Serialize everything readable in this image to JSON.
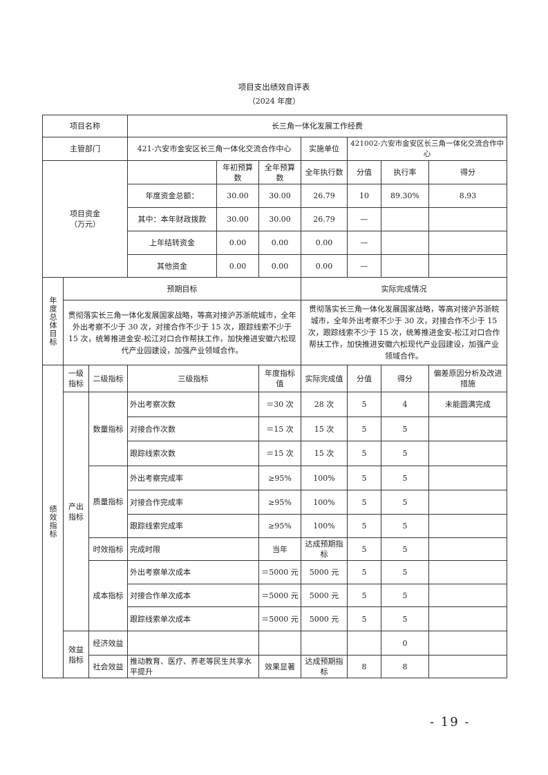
{
  "title": "项目支出绩效自评表",
  "subtitle": "（2024 年度）",
  "project": {
    "name_label": "项目名称",
    "name": "长三角一体化发展工作经费",
    "dept_label": "主管部门",
    "dept": "421-六安市金安区长三角一体化交流合作中心",
    "unit_label": "实施单位",
    "unit": "421002-六安市金安区长三角一体化交流合作中心"
  },
  "funds": {
    "label": "项目资金\n（万元）",
    "headers": [
      "",
      "年初预算数",
      "全年预算数",
      "全年执行数",
      "分值",
      "执行率",
      "得分"
    ],
    "rows": [
      [
        "年度资金总额：",
        "30.00",
        "30.00",
        "26.79",
        "10",
        "89.30%",
        "8.93"
      ],
      [
        "其中：本年财政拨款",
        "30.00",
        "30.00",
        "26.79",
        "—",
        "",
        ""
      ],
      [
        "上年结转资金",
        "0.00",
        "0.00",
        "0.00",
        "—",
        "",
        ""
      ],
      [
        "其他资金",
        "0.00",
        "0.00",
        "0.00",
        "—",
        "",
        ""
      ]
    ]
  },
  "goals": {
    "label": "年度总体目标",
    "expected_label": "预期目标",
    "actual_label": "实际完成情况",
    "expected": "贯彻落实长三角一体化发展国家战略，等高对接沪苏浙皖城市，全年外出考察不少于 30 次，对接合作不少于 15 次，跟踪线索不少于 15 次，统筹推进金安-松江对口合作帮扶工作，加快推进安徽六松现代产业园建设，加强产业领域合作。",
    "actual": "贯彻落实长三角一体化发展国家战略，等高对接沪苏浙皖城市，全年外出考察不少于 30 次，对接合作不少于 15 次，跟踪线索不少于 15 次，统筹推进金安-松江对口合作帮扶工作，加快推进安徽六松现代产业园建设，加强产业领域合作。"
  },
  "perf": {
    "label": "绩效指标",
    "headers": [
      "一级指标",
      "二级指标",
      "三级指标",
      "年度指标值",
      "实际完成值",
      "分值",
      "得分",
      "偏差原因分析及改进措施"
    ],
    "output_label": "产出指标",
    "benefit_label": "效益指标",
    "groups": {
      "quantity": "数量指标",
      "quality": "质量指标",
      "time": "时效指标",
      "cost": "成本指标",
      "economic": "经济效益",
      "social": "社会效益"
    },
    "rows": [
      [
        "外出考察次数",
        "＝30 次",
        "28 次",
        "5",
        "4",
        "未能圆满完成"
      ],
      [
        "对接合作次数",
        "＝15 次",
        "15 次",
        "5",
        "5",
        ""
      ],
      [
        "跟踪线索次数",
        "＝15 次",
        "15 次",
        "5",
        "5",
        ""
      ],
      [
        "外出考察完成率",
        "≥95%",
        "100%",
        "5",
        "5",
        ""
      ],
      [
        "对接合作完成率",
        "≥95%",
        "100%",
        "5",
        "5",
        ""
      ],
      [
        "跟踪线索完成率",
        "≥95%",
        "100%",
        "5",
        "5",
        ""
      ],
      [
        "完成时限",
        "当年",
        "达成预期指标",
        "5",
        "5",
        ""
      ],
      [
        "外出考察单次成本",
        "＝5000 元",
        "5000 元",
        "5",
        "5",
        ""
      ],
      [
        "对接合作单次成本",
        "＝5000 元",
        "5000 元",
        "5",
        "5",
        ""
      ],
      [
        "跟踪线索单次成本",
        "＝5000 元",
        "5000 元",
        "5",
        "5",
        ""
      ],
      [
        "",
        "",
        "",
        "",
        "0",
        ""
      ],
      [
        "推动教育、医疗、养老等民生共享水平提升",
        "效果显著",
        "达成预期指标",
        "8",
        "8",
        ""
      ]
    ]
  },
  "page_number": "- 19 -"
}
